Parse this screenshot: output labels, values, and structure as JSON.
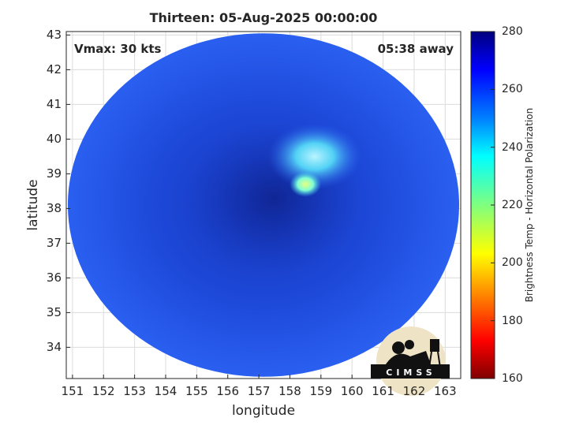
{
  "chart_data": {
    "type": "heatmap",
    "title": "Thirteen: 05-Aug-2025 00:00:00",
    "xlabel": "longitude",
    "ylabel": "latitude",
    "xlim": [
      150.8,
      163.5
    ],
    "ylim": [
      33.1,
      43.1
    ],
    "x_ticks": [
      "151",
      "152",
      "153",
      "154",
      "155",
      "156",
      "157",
      "158",
      "159",
      "160",
      "161",
      "162",
      "163"
    ],
    "y_ticks": [
      "34",
      "35",
      "36",
      "37",
      "38",
      "39",
      "40",
      "41",
      "42",
      "43"
    ],
    "grid": true,
    "annotations": {
      "left": "Vmax: 30 kts",
      "right": "05:38 away"
    },
    "colorbar": {
      "label": "Brightness Temp - Horizontal Polarization",
      "range": [
        160,
        280
      ],
      "ticks": [
        "160",
        "180",
        "200",
        "220",
        "240",
        "260",
        "280"
      ]
    },
    "swath": {
      "center_lon": 157.15,
      "center_lat": 38.1,
      "radius_deg_lon": 6.3,
      "radius_deg_lat": 4.95,
      "background_value": 258
    },
    "features": [
      {
        "name": "cold-core",
        "lon": 157.5,
        "lat": 38.3,
        "value": 270
      },
      {
        "name": "warm-band",
        "lon": 158.8,
        "lat": 39.5,
        "value": 244
      },
      {
        "name": "warm-spot",
        "lon": 158.5,
        "lat": 38.7,
        "value": 225
      }
    ]
  },
  "logo": {
    "text": "CIMSS",
    "colors": {
      "disk": "#efe3c5",
      "silhouette": "#111111"
    }
  },
  "colors": {
    "swath": "#1f4fe6",
    "deep": "#1533b8",
    "warm": "#3cc8f0"
  }
}
